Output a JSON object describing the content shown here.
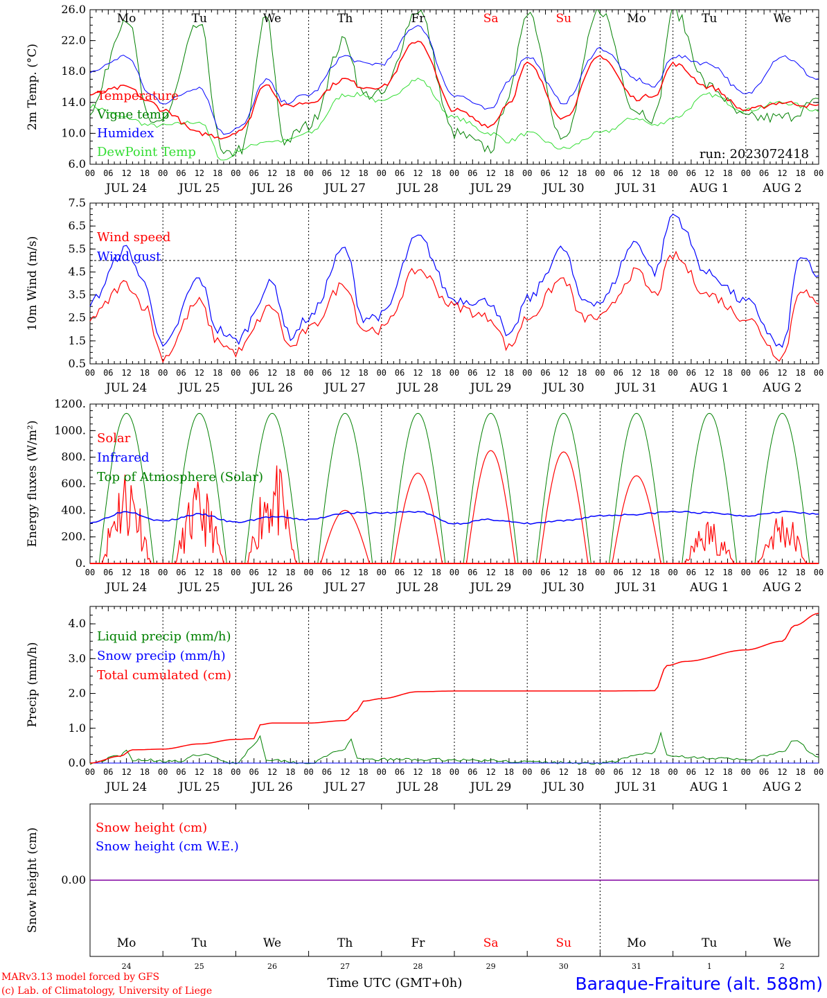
{
  "days": [
    "Mo",
    "Tu",
    "We",
    "Th",
    "Fr",
    "Sa",
    "Su",
    "Mo",
    "Tu",
    "We"
  ],
  "day_colors": [
    "#000000",
    "#000000",
    "#000000",
    "#000000",
    "#000000",
    "#ff0000",
    "#ff0000",
    "#000000",
    "#000000",
    "#000000"
  ],
  "dates": [
    "JUL 24",
    "JUL 25",
    "JUL 26",
    "JUL 27",
    "JUL 28",
    "JUL 29",
    "JUL 30",
    "JUL 31",
    "AUG  1",
    "AUG  2"
  ],
  "day_numbers": [
    "24",
    "25",
    "26",
    "27",
    "28",
    "29",
    "30",
    "31",
    "1",
    "2"
  ],
  "hour_ticks": [
    "00",
    "06",
    "12",
    "18"
  ],
  "hour_tick_last": "00",
  "footer": {
    "model": "MARv3.13 model forced by GFS",
    "copyright": "(c) Lab. of Climatology, University of Liege",
    "xlabel": "Time UTC (GMT+0h)",
    "station": "Baraque-Fraiture (alt. 588m)"
  },
  "colors": {
    "red": "#ff0000",
    "green": "#008000",
    "blue": "#0000ff",
    "lightgreen": "#33dd33",
    "purple": "#8000a0"
  },
  "chart_data": [
    {
      "type": "line",
      "ylabel": "2m Temp. (°C)",
      "ylim": [
        6,
        26
      ],
      "yticks": [
        "6.0",
        "10.0",
        "14.0",
        "18.0",
        "22.0",
        "26.0"
      ],
      "run": "run: 2023072418",
      "x_unit": "hours from JUL 24 00 UTC",
      "series": [
        {
          "name": "Temperature",
          "color": "#ff0000",
          "x": [
            0,
            12,
            20,
            24,
            36,
            44,
            50,
            58,
            64,
            72,
            84,
            90,
            96,
            108,
            120,
            132,
            138,
            144,
            156,
            168,
            180,
            186,
            192,
            204,
            216,
            228,
            240
          ],
          "y": [
            15,
            16,
            14,
            13,
            10,
            9.5,
            10.5,
            16.5,
            13.5,
            14,
            17,
            16,
            16,
            22,
            13,
            11,
            14,
            19,
            12,
            20,
            14.5,
            15,
            19,
            16,
            13,
            14,
            13.5
          ]
        },
        {
          "name": "Vigne temp",
          "color": "#008000",
          "x": [
            0,
            12,
            20,
            24,
            36,
            44,
            50,
            58,
            64,
            72,
            84,
            90,
            96,
            108,
            120,
            132,
            138,
            144,
            156,
            168,
            180,
            186,
            192,
            204,
            216,
            228,
            240
          ],
          "y": [
            13,
            25,
            11,
            12,
            24,
            7,
            8,
            25,
            9,
            11,
            22,
            15,
            15,
            26,
            10,
            8,
            15,
            26,
            9,
            26,
            13,
            12,
            26,
            16,
            12,
            12,
            14
          ]
        },
        {
          "name": "Humidex",
          "color": "#0000ff",
          "x": [
            0,
            12,
            20,
            24,
            36,
            44,
            50,
            58,
            64,
            72,
            84,
            90,
            96,
            108,
            120,
            132,
            138,
            144,
            156,
            168,
            180,
            186,
            192,
            204,
            216,
            228,
            240
          ],
          "y": [
            18,
            20,
            15,
            14,
            16,
            10,
            11,
            17,
            14,
            15,
            20,
            19,
            19,
            24,
            15,
            13,
            17,
            20,
            14,
            21,
            17,
            16,
            20,
            19,
            15,
            20,
            17
          ]
        },
        {
          "name": "DewPoint Temp",
          "color": "#33dd33",
          "x": [
            0,
            12,
            20,
            24,
            36,
            44,
            50,
            58,
            64,
            72,
            84,
            90,
            96,
            108,
            120,
            132,
            138,
            144,
            156,
            168,
            180,
            186,
            192,
            204,
            216,
            228,
            240
          ],
          "y": [
            13.5,
            12,
            11,
            11,
            11.5,
            6.5,
            8,
            9,
            9,
            10,
            15,
            15,
            14,
            17,
            12,
            10,
            9,
            10,
            8,
            10,
            12,
            11,
            12,
            15,
            13,
            14,
            13
          ]
        }
      ]
    },
    {
      "type": "line",
      "ylabel": "10m Wind (m/s)",
      "ylim": [
        0.5,
        7.5
      ],
      "yticks": [
        "0.5",
        "1.5",
        "2.5",
        "3.5",
        "4.5",
        "5.5",
        "6.5",
        "7.5"
      ],
      "ref_line": 5,
      "series": [
        {
          "name": "Wind speed",
          "color": "#ff0000",
          "x": [
            0,
            12,
            18,
            24,
            36,
            42,
            48,
            60,
            66,
            72,
            84,
            90,
            96,
            108,
            120,
            132,
            138,
            144,
            156,
            162,
            168,
            180,
            186,
            192,
            204,
            216,
            228,
            234,
            240
          ],
          "y": [
            2.5,
            4,
            3,
            0.8,
            3.2,
            1.5,
            1,
            3,
            1.2,
            2,
            4,
            2,
            2,
            4.6,
            3,
            2.5,
            1.2,
            2.5,
            4.2,
            2.5,
            2.5,
            4.5,
            3.5,
            5.2,
            3.5,
            2.5,
            0.8,
            3.8,
            3
          ]
        },
        {
          "name": "Wind gust",
          "color": "#0000ff",
          "x": [
            0,
            12,
            18,
            24,
            36,
            42,
            48,
            60,
            66,
            72,
            84,
            90,
            96,
            108,
            120,
            132,
            138,
            144,
            156,
            162,
            168,
            180,
            186,
            192,
            204,
            216,
            228,
            234,
            240
          ],
          "y": [
            3.2,
            5.5,
            4,
            1.2,
            4.2,
            2,
            1.5,
            4,
            1.7,
            2.5,
            5.5,
            2.5,
            2.6,
            6,
            3.3,
            3.2,
            1.6,
            3.3,
            5.5,
            3.3,
            3.2,
            5.8,
            4.5,
            7,
            4.4,
            3.2,
            1.2,
            5.2,
            4.2
          ]
        }
      ]
    },
    {
      "type": "line",
      "ylabel": "Energy fluxes (W/m²)",
      "ylim": [
        0,
        1200
      ],
      "yticks": [
        "0.",
        "200.",
        "400.",
        "600.",
        "800.",
        "1000.",
        "1200."
      ],
      "series": [
        {
          "name": "Solar",
          "color": "#ff0000",
          "peaks": [
            780,
            620,
            820,
            400,
            680,
            850,
            840,
            660,
            350,
            430
          ]
        },
        {
          "name": "Infrared",
          "color": "#0000ff",
          "x": [
            0,
            12,
            24,
            36,
            48,
            60,
            72,
            84,
            96,
            108,
            120,
            132,
            144,
            156,
            168,
            180,
            192,
            204,
            216,
            228,
            240
          ],
          "y": [
            310,
            390,
            320,
            370,
            310,
            350,
            330,
            380,
            380,
            390,
            300,
            330,
            300,
            320,
            360,
            370,
            390,
            380,
            360,
            390,
            370
          ]
        },
        {
          "name": "Top of Atmosphere (Solar)",
          "color": "#008000",
          "peak": 1130
        }
      ]
    },
    {
      "type": "line",
      "ylabel": "Precip (mm/h)",
      "ylim": [
        0,
        4.5
      ],
      "yticks": [
        "0.0",
        "1.0",
        "2.0",
        "3.0",
        "4.0"
      ],
      "series": [
        {
          "name": "Liquid precip (mm/h)",
          "color": "#008000",
          "x": [
            0,
            10,
            12,
            14,
            30,
            36,
            48,
            54,
            56,
            58,
            72,
            84,
            86,
            88,
            108,
            168,
            186,
            188,
            190,
            216,
            228,
            232,
            240
          ],
          "y": [
            0,
            0.2,
            0.35,
            0.1,
            0.05,
            0.25,
            0,
            0.5,
            0.8,
            0.1,
            0,
            0.4,
            0.65,
            0.1,
            0.1,
            0,
            0.3,
            0.85,
            0.2,
            0.1,
            0.3,
            0.65,
            0.15
          ]
        },
        {
          "name": "Snow precip (mm/h)",
          "color": "#0000ff",
          "x": [
            0,
            240
          ],
          "y": [
            0,
            0
          ]
        },
        {
          "name": "Total cumulated (cm)",
          "color": "#ff0000",
          "x": [
            0,
            10,
            14,
            24,
            36,
            48,
            54,
            56,
            60,
            72,
            84,
            88,
            90,
            96,
            108,
            120,
            168,
            186,
            190,
            196,
            216,
            228,
            232,
            240
          ],
          "y": [
            0,
            0.2,
            0.38,
            0.4,
            0.55,
            0.68,
            0.7,
            1.1,
            1.15,
            1.15,
            1.22,
            1.5,
            1.78,
            1.85,
            2.05,
            2.07,
            2.07,
            2.08,
            2.8,
            2.92,
            3.25,
            3.5,
            3.95,
            4.3
          ]
        }
      ]
    },
    {
      "type": "line",
      "ylabel": "Snow height (cm)",
      "yticks": [
        "0.00"
      ],
      "series": [
        {
          "name": "Snow height (cm)",
          "color": "#ff0000",
          "x": [
            0,
            240
          ],
          "y": [
            0,
            0
          ]
        },
        {
          "name": "Snow height (cm W.E.)",
          "color": "#0000ff",
          "x": [
            0,
            240
          ],
          "y": [
            0,
            0
          ]
        }
      ]
    }
  ]
}
